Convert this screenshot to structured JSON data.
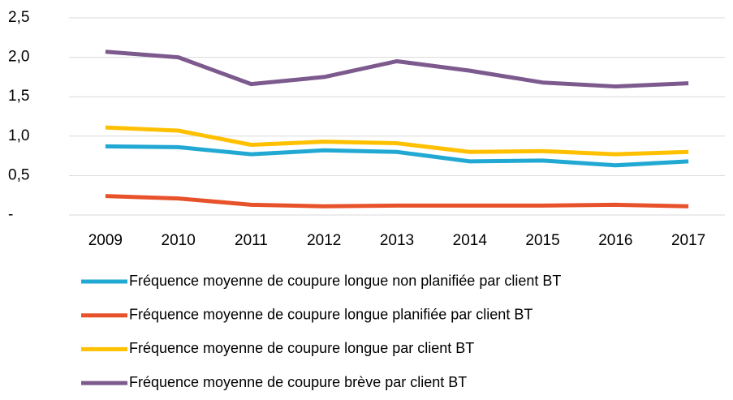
{
  "chart_data": {
    "type": "line",
    "categories": [
      "2009",
      "2010",
      "2011",
      "2012",
      "2013",
      "2014",
      "2015",
      "2016",
      "2017"
    ],
    "series": [
      {
        "name": "Fréquence moyenne de coupure longue non planifiée par client BT",
        "color": "#22a9d3",
        "values": [
          0.87,
          0.86,
          0.77,
          0.82,
          0.8,
          0.68,
          0.69,
          0.63,
          0.68
        ]
      },
      {
        "name": "Fréquence moyenne de coupure longue planifiée par client BT",
        "color": "#e8522b",
        "values": [
          0.24,
          0.21,
          0.13,
          0.11,
          0.12,
          0.12,
          0.12,
          0.13,
          0.11
        ]
      },
      {
        "name": "Fréquence moyenne de coupure longue par client BT",
        "color": "#ffc000",
        "values": [
          1.11,
          1.07,
          0.89,
          0.93,
          0.91,
          0.8,
          0.81,
          0.77,
          0.8
        ]
      },
      {
        "name": "Fréquence moyenne de coupure brève par client BT",
        "color": "#7d5a8e",
        "values": [
          2.07,
          2.0,
          1.66,
          1.75,
          1.95,
          1.83,
          1.68,
          1.63,
          1.67
        ]
      }
    ],
    "ylim": [
      0,
      2.5
    ],
    "yticks": [
      {
        "value": 0,
        "label": "-"
      },
      {
        "value": 0.5,
        "label": "0,5"
      },
      {
        "value": 1,
        "label": "1,0"
      },
      {
        "value": 1.5,
        "label": "1,5"
      },
      {
        "value": 2,
        "label": "2,0"
      },
      {
        "value": 2.5,
        "label": "2,5"
      }
    ],
    "grid": true,
    "legend": "bottom"
  }
}
